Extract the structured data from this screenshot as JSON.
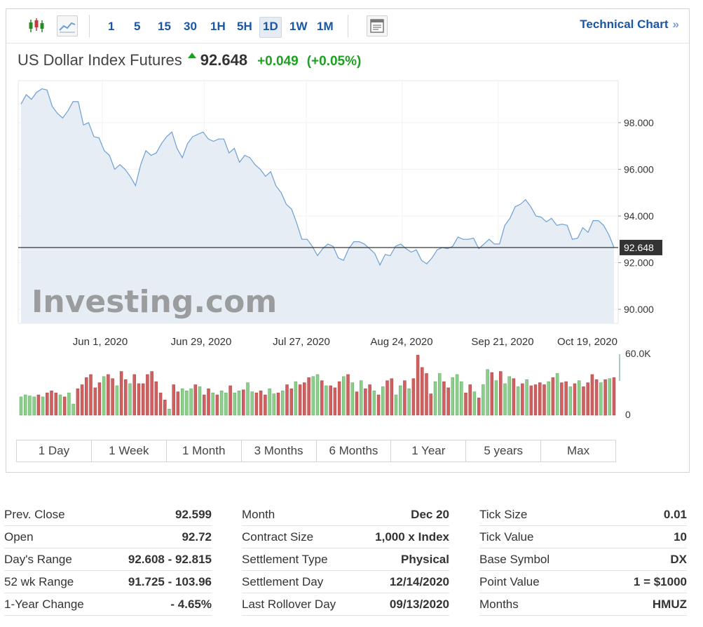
{
  "toolbar": {
    "timeframes": [
      "1",
      "5",
      "15",
      "30",
      "1H",
      "5H",
      "1D",
      "1W",
      "1M"
    ],
    "active": "1D",
    "technical_chart_label": "Technical Chart",
    "technical_chart_chevron": "»"
  },
  "instrument": {
    "name": "US Dollar Index Futures",
    "last": "92.648",
    "change": "+0.049",
    "change_pct": "(+0.05%)",
    "direction": "up"
  },
  "colors": {
    "up": "#1ea023",
    "link": "#1a56a4",
    "line": "#6d9fd3",
    "area": "#e6edf4",
    "vol_up": "#8ccf8c",
    "vol_down": "#cf6060"
  },
  "watermark": "Investing.com",
  "chart_data": {
    "type": "line",
    "x_tick_labels": [
      "Jun 1, 2020",
      "Jun 29, 2020",
      "Jul 27, 2020",
      "Aug 24, 2020",
      "Sep 21, 2020",
      "Oct 19, 2020"
    ],
    "y_tick_labels": [
      "98.000",
      "96.000",
      "94.000",
      "92.000",
      "90.000"
    ],
    "ylim": [
      89.4,
      99.8
    ],
    "last_price_label": "92.648",
    "last_price": 92.648,
    "price_series": [
      98.8,
      99.2,
      99.0,
      99.3,
      99.45,
      99.4,
      98.7,
      98.4,
      98.2,
      98.5,
      98.9,
      98.9,
      97.9,
      98.0,
      97.4,
      97.35,
      96.8,
      96.6,
      96.0,
      96.2,
      96.0,
      95.7,
      95.3,
      96.2,
      96.8,
      96.6,
      96.7,
      97.1,
      97.4,
      97.6,
      96.9,
      96.5,
      97.1,
      97.4,
      97.5,
      97.6,
      97.3,
      97.2,
      97.3,
      97.3,
      96.7,
      96.9,
      96.3,
      96.6,
      96.5,
      96.2,
      96.0,
      95.7,
      95.9,
      95.3,
      95.0,
      94.5,
      94.3,
      93.7,
      93.0,
      93.0,
      92.7,
      92.3,
      92.6,
      92.8,
      92.7,
      92.2,
      92.1,
      92.6,
      92.9,
      92.9,
      92.8,
      92.6,
      92.4,
      91.9,
      92.35,
      92.3,
      92.7,
      92.8,
      92.6,
      92.45,
      92.55,
      92.1,
      91.95,
      92.2,
      92.55,
      92.65,
      92.6,
      92.7,
      93.1,
      93.0,
      93.0,
      93.05,
      92.6,
      92.8,
      93.0,
      92.8,
      92.8,
      93.6,
      93.9,
      94.4,
      94.5,
      94.7,
      94.4,
      94.0,
      93.95,
      93.75,
      93.9,
      93.6,
      93.65,
      93.6,
      93.0,
      93.05,
      93.5,
      93.3,
      93.8,
      93.8,
      93.6,
      93.2,
      92.648
    ],
    "volume_axis_labels": [
      "60.0K",
      "0"
    ],
    "volume_max": 60000,
    "volume_series": [
      {
        "v": 18,
        "up": 1
      },
      {
        "v": 20,
        "up": 1
      },
      {
        "v": 19,
        "up": 1
      },
      {
        "v": 18,
        "up": 1
      },
      {
        "v": 20,
        "up": 0
      },
      {
        "v": 18,
        "up": 1
      },
      {
        "v": 22,
        "up": 0
      },
      {
        "v": 24,
        "up": 0
      },
      {
        "v": 22,
        "up": 0
      },
      {
        "v": 20,
        "up": 1
      },
      {
        "v": 18,
        "up": 0
      },
      {
        "v": 22,
        "up": 1
      },
      {
        "v": 11,
        "up": 1
      },
      {
        "v": 26,
        "up": 0
      },
      {
        "v": 30,
        "up": 0
      },
      {
        "v": 37,
        "up": 0
      },
      {
        "v": 40,
        "up": 0
      },
      {
        "v": 27,
        "up": 0
      },
      {
        "v": 32,
        "up": 0
      },
      {
        "v": 38,
        "up": 1
      },
      {
        "v": 40,
        "up": 0
      },
      {
        "v": 36,
        "up": 0
      },
      {
        "v": 29,
        "up": 1
      },
      {
        "v": 43,
        "up": 0
      },
      {
        "v": 35,
        "up": 0
      },
      {
        "v": 31,
        "up": 1
      },
      {
        "v": 40,
        "up": 0
      },
      {
        "v": 31,
        "up": 0
      },
      {
        "v": 31,
        "up": 0
      },
      {
        "v": 40,
        "up": 0
      },
      {
        "v": 43,
        "up": 0
      },
      {
        "v": 33,
        "up": 0
      },
      {
        "v": 22,
        "up": 0
      },
      {
        "v": 15,
        "up": 0
      },
      {
        "v": 6,
        "up": 1
      },
      {
        "v": 30,
        "up": 0
      },
      {
        "v": 23,
        "up": 0
      },
      {
        "v": 26,
        "up": 1
      },
      {
        "v": 24,
        "up": 1
      },
      {
        "v": 26,
        "up": 1
      },
      {
        "v": 30,
        "up": 0
      },
      {
        "v": 28,
        "up": 1
      },
      {
        "v": 20,
        "up": 0
      },
      {
        "v": 26,
        "up": 0
      },
      {
        "v": 22,
        "up": 1
      },
      {
        "v": 20,
        "up": 0
      },
      {
        "v": 24,
        "up": 1
      },
      {
        "v": 22,
        "up": 1
      },
      {
        "v": 29,
        "up": 0
      },
      {
        "v": 22,
        "up": 1
      },
      {
        "v": 24,
        "up": 1
      },
      {
        "v": 25,
        "up": 0
      },
      {
        "v": 32,
        "up": 1
      },
      {
        "v": 23,
        "up": 1
      },
      {
        "v": 22,
        "up": 0
      },
      {
        "v": 24,
        "up": 0
      },
      {
        "v": 20,
        "up": 0
      },
      {
        "v": 26,
        "up": 1
      },
      {
        "v": 21,
        "up": 1
      },
      {
        "v": 22,
        "up": 0
      },
      {
        "v": 24,
        "up": 1
      },
      {
        "v": 30,
        "up": 0
      },
      {
        "v": 26,
        "up": 0
      },
      {
        "v": 33,
        "up": 1
      },
      {
        "v": 30,
        "up": 0
      },
      {
        "v": 32,
        "up": 0
      },
      {
        "v": 37,
        "up": 0
      },
      {
        "v": 38,
        "up": 1
      },
      {
        "v": 40,
        "up": 1
      },
      {
        "v": 34,
        "up": 0
      },
      {
        "v": 29,
        "up": 1
      },
      {
        "v": 29,
        "up": 0
      },
      {
        "v": 27,
        "up": 0
      },
      {
        "v": 33,
        "up": 0
      },
      {
        "v": 38,
        "up": 1
      },
      {
        "v": 40,
        "up": 0
      },
      {
        "v": 32,
        "up": 1
      },
      {
        "v": 23,
        "up": 0
      },
      {
        "v": 34,
        "up": 1
      },
      {
        "v": 26,
        "up": 0
      },
      {
        "v": 30,
        "up": 0
      },
      {
        "v": 24,
        "up": 1
      },
      {
        "v": 20,
        "up": 0
      },
      {
        "v": 28,
        "up": 1
      },
      {
        "v": 34,
        "up": 0
      },
      {
        "v": 36,
        "up": 0
      },
      {
        "v": 20,
        "up": 1
      },
      {
        "v": 29,
        "up": 1
      },
      {
        "v": 34,
        "up": 0
      },
      {
        "v": 26,
        "up": 1
      },
      {
        "v": 36,
        "up": 0
      },
      {
        "v": 59,
        "up": 0
      },
      {
        "v": 47,
        "up": 0
      },
      {
        "v": 41,
        "up": 0
      },
      {
        "v": 21,
        "up": 0
      },
      {
        "v": 33,
        "up": 1
      },
      {
        "v": 41,
        "up": 1
      },
      {
        "v": 33,
        "up": 0
      },
      {
        "v": 27,
        "up": 0
      },
      {
        "v": 37,
        "up": 1
      },
      {
        "v": 40,
        "up": 1
      },
      {
        "v": 33,
        "up": 1
      },
      {
        "v": 22,
        "up": 0
      },
      {
        "v": 30,
        "up": 0
      },
      {
        "v": 23,
        "up": 1
      },
      {
        "v": 17,
        "up": 0
      },
      {
        "v": 30,
        "up": 1
      },
      {
        "v": 45,
        "up": 1
      },
      {
        "v": 42,
        "up": 0
      },
      {
        "v": 34,
        "up": 1
      },
      {
        "v": 43,
        "up": 0
      },
      {
        "v": 31,
        "up": 1
      },
      {
        "v": 38,
        "up": 1
      },
      {
        "v": 36,
        "up": 0
      },
      {
        "v": 28,
        "up": 1
      },
      {
        "v": 31,
        "up": 0
      },
      {
        "v": 35,
        "up": 1
      },
      {
        "v": 29,
        "up": 0
      },
      {
        "v": 30,
        "up": 0
      },
      {
        "v": 32,
        "up": 0
      },
      {
        "v": 30,
        "up": 0
      },
      {
        "v": 33,
        "up": 1
      },
      {
        "v": 37,
        "up": 0
      },
      {
        "v": 41,
        "up": 1
      },
      {
        "v": 32,
        "up": 0
      },
      {
        "v": 33,
        "up": 0
      },
      {
        "v": 28,
        "up": 1
      },
      {
        "v": 31,
        "up": 0
      },
      {
        "v": 34,
        "up": 1
      },
      {
        "v": 28,
        "up": 0
      },
      {
        "v": 32,
        "up": 0
      },
      {
        "v": 40,
        "up": 0
      },
      {
        "v": 35,
        "up": 0
      },
      {
        "v": 32,
        "up": 1
      },
      {
        "v": 35,
        "up": 0
      },
      {
        "v": 36,
        "up": 1
      },
      {
        "v": 37,
        "up": 0
      }
    ]
  },
  "ranges": [
    "1 Day",
    "1 Week",
    "1 Month",
    "3 Months",
    "6 Months",
    "1 Year",
    "5 years",
    "Max"
  ],
  "stats": [
    [
      {
        "label": "Prev. Close",
        "value": "92.599"
      },
      {
        "label": "Open",
        "value": "92.72"
      },
      {
        "label": "Day's Range",
        "value": "92.608 - 92.815"
      },
      {
        "label": "52 wk Range",
        "value": "91.725 - 103.96"
      },
      {
        "label": "1-Year Change",
        "value": "- 4.65%"
      }
    ],
    [
      {
        "label": "Month",
        "value": "Dec 20"
      },
      {
        "label": "Contract Size",
        "value": "1,000 x Index"
      },
      {
        "label": "Settlement Type",
        "value": "Physical"
      },
      {
        "label": "Settlement Day",
        "value": "12/14/2020"
      },
      {
        "label": "Last Rollover Day",
        "value": "09/13/2020"
      }
    ],
    [
      {
        "label": "Tick Size",
        "value": "0.01"
      },
      {
        "label": "Tick Value",
        "value": "10"
      },
      {
        "label": "Base Symbol",
        "value": "DX"
      },
      {
        "label": "Point Value",
        "value": "1 = $1000"
      },
      {
        "label": "Months",
        "value": "HMUZ"
      }
    ]
  ]
}
